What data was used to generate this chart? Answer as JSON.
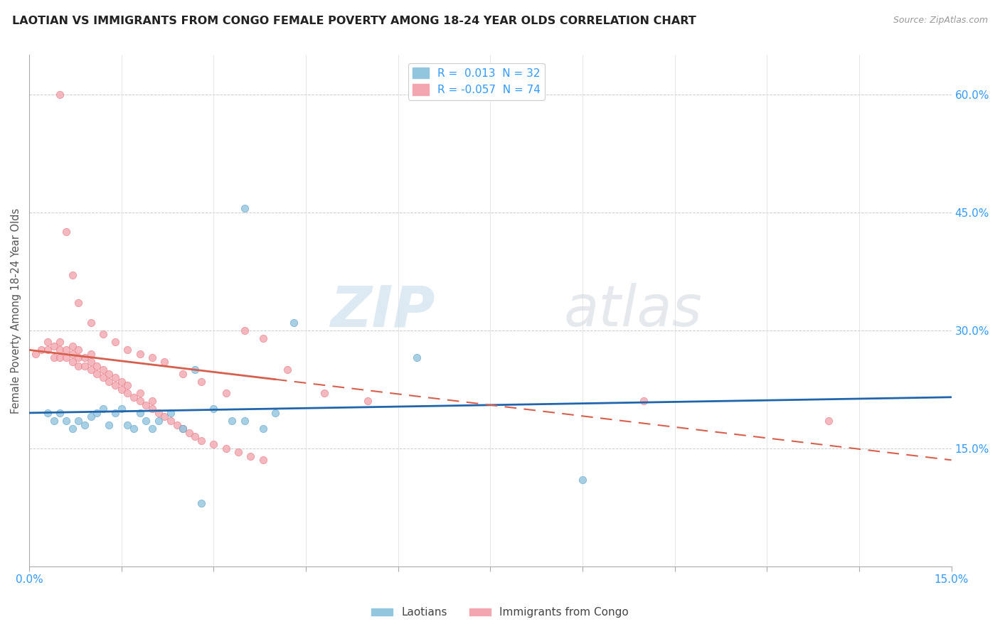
{
  "title": "LAOTIAN VS IMMIGRANTS FROM CONGO FEMALE POVERTY AMONG 18-24 YEAR OLDS CORRELATION CHART",
  "source": "Source: ZipAtlas.com",
  "ylabel": "Female Poverty Among 18-24 Year Olds",
  "xmin": 0.0,
  "xmax": 0.15,
  "ymin": 0.0,
  "ymax": 0.65,
  "legend_blue_r": "0.013",
  "legend_blue_n": "32",
  "legend_pink_r": "-0.057",
  "legend_pink_n": "74",
  "blue_color": "#92c5de",
  "pink_color": "#f4a6b0",
  "blue_line_color": "#2166ac",
  "pink_line_color": "#d6604d",
  "blue_marker_edge": "#5b9ec9",
  "pink_marker_edge": "#e8737f",
  "laotians_x": [
    0.003,
    0.004,
    0.005,
    0.006,
    0.007,
    0.008,
    0.009,
    0.01,
    0.011,
    0.012,
    0.013,
    0.014,
    0.015,
    0.016,
    0.017,
    0.018,
    0.019,
    0.02,
    0.021,
    0.023,
    0.025,
    0.027,
    0.03,
    0.033,
    0.035,
    0.038,
    0.04,
    0.043,
    0.063,
    0.09,
    0.035,
    0.028
  ],
  "laotians_y": [
    0.195,
    0.185,
    0.195,
    0.185,
    0.175,
    0.185,
    0.18,
    0.19,
    0.195,
    0.2,
    0.18,
    0.195,
    0.2,
    0.18,
    0.175,
    0.195,
    0.185,
    0.175,
    0.185,
    0.195,
    0.175,
    0.25,
    0.2,
    0.185,
    0.185,
    0.175,
    0.195,
    0.31,
    0.265,
    0.11,
    0.455,
    0.08
  ],
  "congo_x": [
    0.001,
    0.002,
    0.003,
    0.003,
    0.004,
    0.004,
    0.005,
    0.005,
    0.005,
    0.006,
    0.006,
    0.007,
    0.007,
    0.007,
    0.008,
    0.008,
    0.008,
    0.009,
    0.009,
    0.01,
    0.01,
    0.01,
    0.011,
    0.011,
    0.012,
    0.012,
    0.013,
    0.013,
    0.014,
    0.014,
    0.015,
    0.015,
    0.016,
    0.016,
    0.017,
    0.018,
    0.018,
    0.019,
    0.02,
    0.02,
    0.021,
    0.022,
    0.023,
    0.024,
    0.025,
    0.026,
    0.027,
    0.028,
    0.03,
    0.032,
    0.034,
    0.036,
    0.038,
    0.005,
    0.006,
    0.007,
    0.008,
    0.01,
    0.012,
    0.014,
    0.016,
    0.018,
    0.02,
    0.022,
    0.025,
    0.028,
    0.032,
    0.035,
    0.038,
    0.042,
    0.048,
    0.055,
    0.1,
    0.13
  ],
  "congo_y": [
    0.27,
    0.275,
    0.275,
    0.285,
    0.265,
    0.28,
    0.265,
    0.275,
    0.285,
    0.265,
    0.275,
    0.26,
    0.27,
    0.28,
    0.255,
    0.265,
    0.275,
    0.255,
    0.265,
    0.25,
    0.26,
    0.27,
    0.245,
    0.255,
    0.24,
    0.25,
    0.235,
    0.245,
    0.23,
    0.24,
    0.225,
    0.235,
    0.22,
    0.23,
    0.215,
    0.21,
    0.22,
    0.205,
    0.2,
    0.21,
    0.195,
    0.19,
    0.185,
    0.18,
    0.175,
    0.17,
    0.165,
    0.16,
    0.155,
    0.15,
    0.145,
    0.14,
    0.135,
    0.6,
    0.425,
    0.37,
    0.335,
    0.31,
    0.295,
    0.285,
    0.275,
    0.27,
    0.265,
    0.26,
    0.245,
    0.235,
    0.22,
    0.3,
    0.29,
    0.25,
    0.22,
    0.21,
    0.21,
    0.185
  ]
}
